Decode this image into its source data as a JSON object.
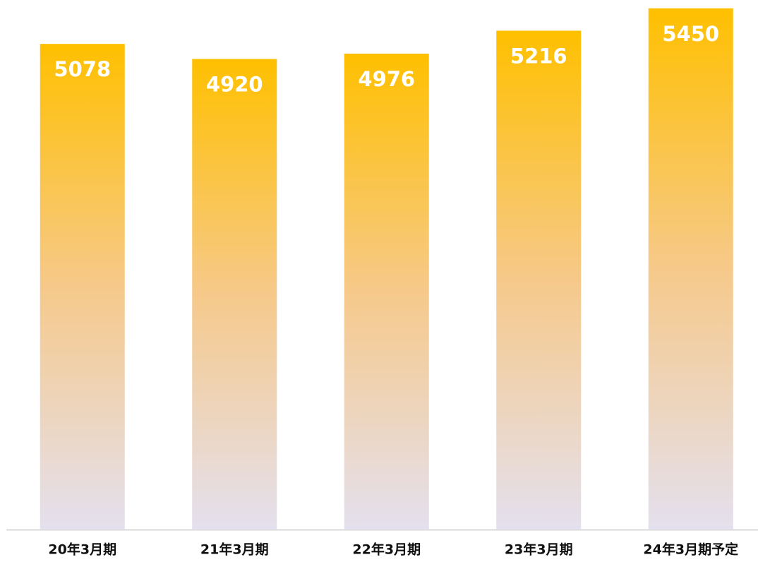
{
  "chart_data": {
    "type": "bar",
    "categories": [
      "20年3月期",
      "21年3月期",
      "22年3月期",
      "23年3月期",
      "24年3月期予定"
    ],
    "values": [
      5078,
      4920,
      4976,
      5216,
      5450
    ],
    "color": "#ffc000",
    "ylim": [
      0,
      5500
    ]
  }
}
